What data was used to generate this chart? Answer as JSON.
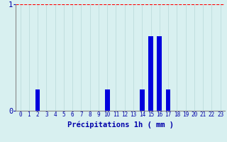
{
  "hours": [
    0,
    1,
    2,
    3,
    4,
    5,
    6,
    7,
    8,
    9,
    10,
    11,
    12,
    13,
    14,
    15,
    16,
    17,
    18,
    19,
    20,
    21,
    22,
    23
  ],
  "values": [
    0,
    0,
    0.2,
    0,
    0,
    0,
    0,
    0,
    0,
    0,
    0.2,
    0,
    0,
    0,
    0.2,
    0.7,
    0.7,
    0.2,
    0,
    0,
    0,
    0,
    0,
    0
  ],
  "bar_color": "#0000dd",
  "background_color": "#d8f0f0",
  "grid_color_v": "#b8d8d8",
  "grid_color_h": "#ff6666",
  "axis_color": "#0000aa",
  "spine_color": "#888888",
  "xlabel": "Précipitations 1h ( mm )",
  "xlabel_fontsize": 7.5,
  "tick_fontsize": 5.5,
  "ytick_fontsize": 7.5,
  "ylim": [
    0,
    1.0
  ],
  "yticks": [
    0,
    1
  ],
  "xlim": [
    -0.5,
    23.5
  ],
  "bar_width": 0.55
}
